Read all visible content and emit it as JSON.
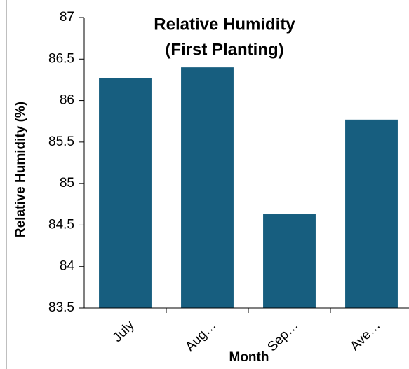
{
  "chart_data": {
    "type": "bar",
    "title": [
      "Relative Humidity",
      "(First Planting)"
    ],
    "x_label": "Month",
    "y_label": "Relative Humidity (%)",
    "categories": [
      "July",
      "Aug…",
      "Sep…",
      "Ave…"
    ],
    "values": [
      86.27,
      86.4,
      84.63,
      85.77
    ],
    "color": "#175e7f",
    "ylim": [
      83.5,
      87
    ],
    "yticks": [
      83.5,
      84,
      84.5,
      85,
      85.5,
      86,
      86.5,
      87
    ],
    "grid": false
  }
}
